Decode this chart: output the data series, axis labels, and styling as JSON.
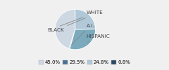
{
  "labels": [
    "WHITE",
    "A.I.",
    "HISPANIC",
    "BLACK"
  ],
  "values": [
    45.0,
    0.8,
    29.5,
    24.8
  ],
  "colors": [
    "#cdd8e3",
    "#4a7097",
    "#7aaabb",
    "#b0c8d8"
  ],
  "startangle": 90,
  "legend_colors": [
    "#cdd8e3",
    "#4a7097",
    "#b0c8d8",
    "#2a4a65"
  ],
  "legend_labels": [
    "45.0%",
    "29.5%",
    "24.8%",
    "0.8%"
  ],
  "label_fontsize": 5.2,
  "legend_fontsize": 5.0,
  "bg_color": "#f0f0f0"
}
